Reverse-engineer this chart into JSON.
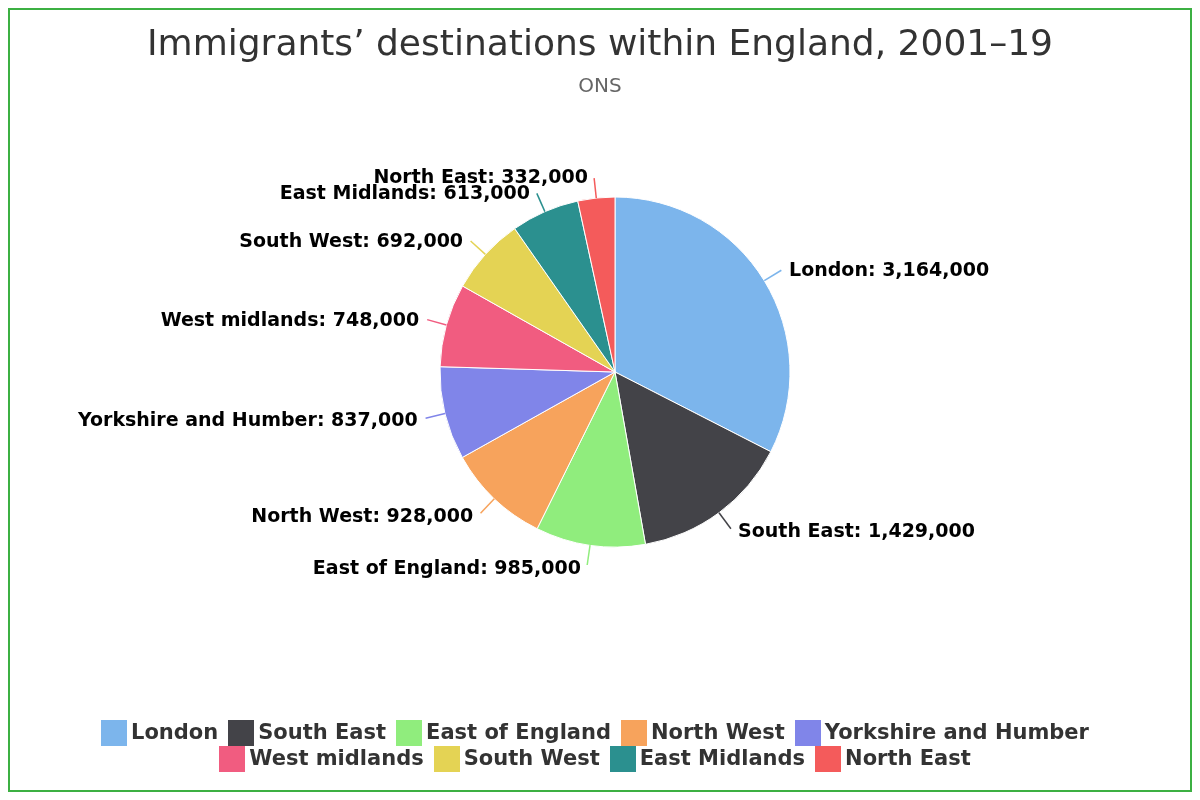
{
  "chart_data": {
    "type": "pie",
    "title": "Immigrants’ destinations within England, 2001–19",
    "subtitle": "ONS",
    "categories": [
      "London",
      "South East",
      "East of England",
      "North West",
      "Yorkshire and Humber",
      "West midlands",
      "South West",
      "East Midlands",
      "North East"
    ],
    "values": [
      3164000,
      1429000,
      985000,
      928000,
      837000,
      748000,
      692000,
      613000,
      332000
    ],
    "colors": [
      "#7cb5ec",
      "#434348",
      "#90ed7d",
      "#f7a35c",
      "#8085e9",
      "#f15c80",
      "#e4d354",
      "#2b908f",
      "#f45b5b"
    ],
    "value_labels": [
      "London: 3,164,000",
      "South East: 1,429,000",
      "East of England: 985,000",
      "North West: 928,000",
      "Yorkshire and Humber: 837,000",
      "West midlands: 748,000",
      "South West: 692,000",
      "East Midlands: 613,000",
      "North East: 332,000"
    ],
    "legend": "bottom"
  }
}
